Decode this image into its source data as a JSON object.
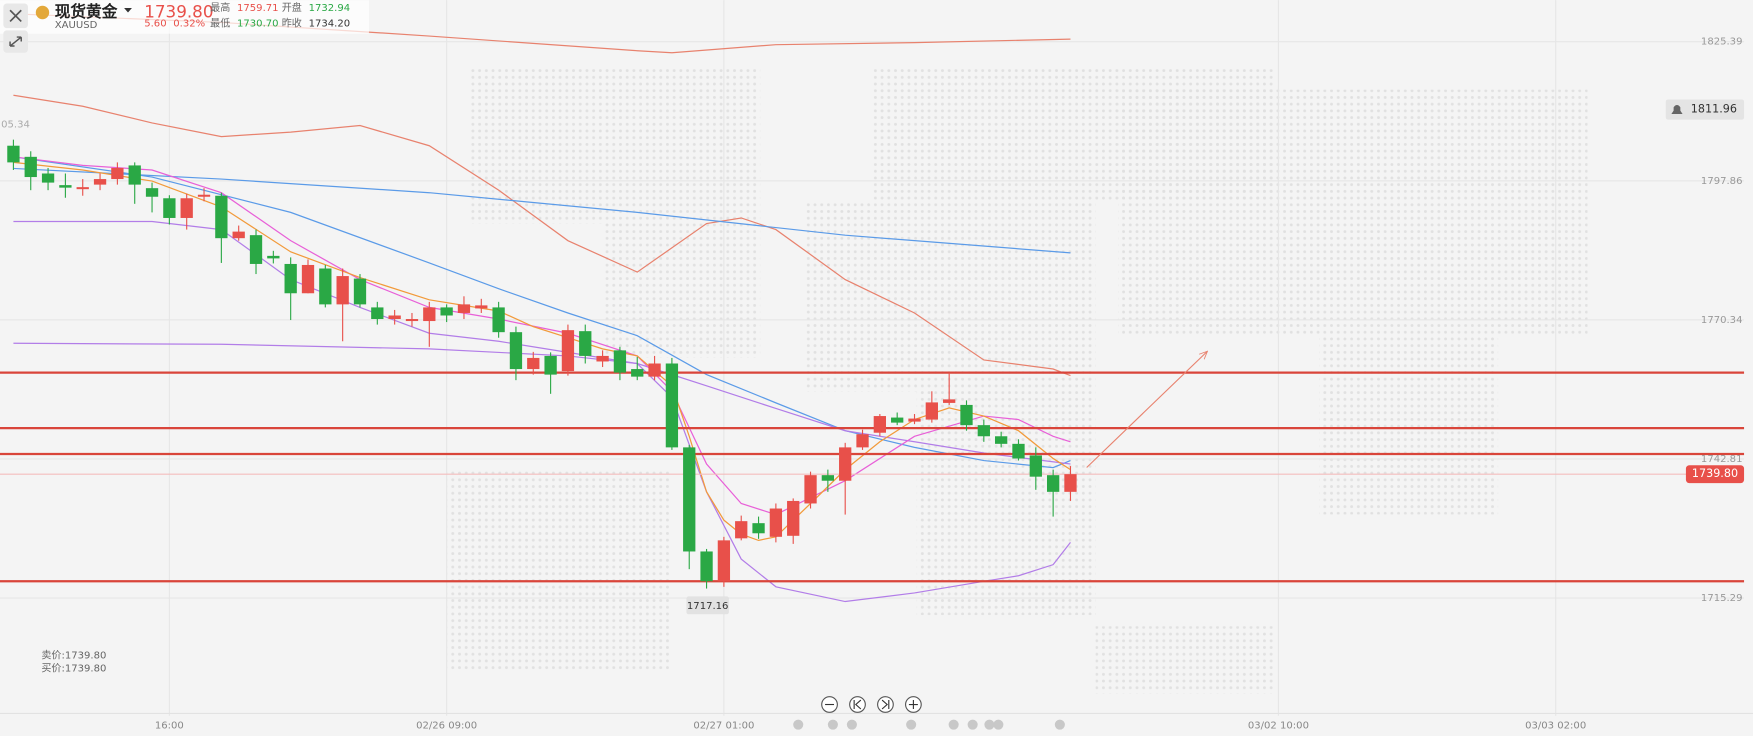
{
  "header": {
    "title": "现货黄金",
    "symbol": "XAUUSD",
    "price": "1739.80",
    "change": "5.60",
    "change_pct": "0.32%",
    "high_label": "最高",
    "high": "1759.71",
    "open_label": "开盘",
    "open": "1732.94",
    "low_label": "最低",
    "low": "1730.70",
    "prev_close_label": "昨收",
    "prev_close": "1734.20"
  },
  "quote": {
    "sell": "卖价:1739.80",
    "buy": "买价:1739.80"
  },
  "chart_data": {
    "type": "candlestick",
    "up_color": "#e8504a",
    "down_color": "#2aa845",
    "open": [
      1804.8,
      1802.6,
      1799.3,
      1797,
      1796.2,
      1797.1,
      1798.2,
      1800.9,
      1796.4,
      1794.4,
      1790.5,
      1794.7,
      1794.9,
      1786.5,
      1787.1,
      1783,
      1781.4,
      1775.6,
      1780.5,
      1773.4,
      1778.5,
      1772.8,
      1770.5,
      1770.1,
      1770.1,
      1772.8,
      1771.7,
      1772.6,
      1772.8,
      1767.9,
      1760.6,
      1763.2,
      1760.2,
      1768.1,
      1762.1,
      1764.3,
      1760.6,
      1759.1,
      1761.7,
      1745.1,
      1724.5,
      1718.6,
      1727.1,
      1730.1,
      1727.4,
      1727.6,
      1734,
      1739.6,
      1738.5,
      1745.1,
      1748,
      1751,
      1750.2,
      1750.6,
      1753.9,
      1753.5,
      1749.5,
      1747.3,
      1745.8,
      1743.5,
      1739.6,
      1736.3
    ],
    "high": [
      1806,
      1803.7,
      1800.4,
      1799.3,
      1798.2,
      1799.3,
      1801.5,
      1801.5,
      1797.5,
      1795,
      1795.3,
      1796.4,
      1795.5,
      1789,
      1788.2,
      1784,
      1782.7,
      1782.3,
      1781.2,
      1780.5,
      1779.4,
      1773.9,
      1772.3,
      1771.7,
      1773.9,
      1773.4,
      1775,
      1774.5,
      1773.9,
      1769,
      1764,
      1763.9,
      1769.4,
      1769.4,
      1764.3,
      1765,
      1763,
      1763.2,
      1762.8,
      1745.6,
      1725,
      1727.4,
      1731.6,
      1731.4,
      1734,
      1735,
      1740.3,
      1740.7,
      1746,
      1748.6,
      1751.7,
      1752,
      1751.7,
      1756.2,
      1759.9,
      1754.4,
      1750.6,
      1748.2,
      1746.7,
      1745.1,
      1740.7,
      1741.4
    ],
    "low": [
      1800,
      1796,
      1796,
      1794.5,
      1794.9,
      1796,
      1797.1,
      1793.3,
      1791.6,
      1789.2,
      1788.2,
      1793.8,
      1781.6,
      1786,
      1779.4,
      1781.5,
      1770.3,
      1775.6,
      1772.8,
      1766.1,
      1772.8,
      1769.4,
      1769.4,
      1769,
      1765,
      1769.9,
      1770.5,
      1771.7,
      1766.8,
      1758.4,
      1759.5,
      1755.7,
      1759.3,
      1761.7,
      1761,
      1758.4,
      1758.4,
      1758.4,
      1744.6,
      1721,
      1717.16,
      1717.5,
      1726.7,
      1727,
      1726.3,
      1726,
      1733,
      1736.3,
      1731.8,
      1744.6,
      1747.3,
      1749.5,
      1749.7,
      1750,
      1753.5,
      1748.4,
      1746.2,
      1745.1,
      1742.5,
      1736.7,
      1731.4,
      1734.5
    ],
    "close": [
      1801.5,
      1798.6,
      1797.5,
      1796.5,
      1796.6,
      1798.2,
      1800.4,
      1797.1,
      1794.7,
      1790.5,
      1794.4,
      1795.1,
      1786.5,
      1787.8,
      1781.4,
      1782.5,
      1775.6,
      1781.2,
      1773.4,
      1779,
      1773.4,
      1770.5,
      1771.2,
      1770.5,
      1772.8,
      1771.2,
      1773.4,
      1773.2,
      1767.9,
      1760.6,
      1762.8,
      1759.5,
      1768.3,
      1763.2,
      1763.2,
      1759.9,
      1759.1,
      1761.7,
      1745.1,
      1724.5,
      1718.6,
      1726.7,
      1730.5,
      1728.1,
      1733,
      1734.5,
      1739.6,
      1738.5,
      1745.1,
      1747.7,
      1751.3,
      1750,
      1750.8,
      1754,
      1754.6,
      1749.5,
      1747.3,
      1745.8,
      1742.9,
      1739.3,
      1736.3,
      1739.8
    ],
    "lines": [
      {
        "color": "#e8826e",
        "x": [
          0,
          12,
          24,
          36,
          38,
          44,
          52,
          61
        ],
        "values": [
          1830.9,
          1829.2,
          1826.5,
          1823.6,
          1823.2,
          1824.8,
          1825.2,
          1825.9
        ]
      },
      {
        "color": "#e8826e",
        "x": [
          0,
          4,
          8,
          12,
          16,
          20,
          24,
          28,
          32,
          36,
          40,
          42,
          44,
          48,
          52,
          56,
          60,
          61
        ],
        "values": [
          1814.8,
          1812.6,
          1809.3,
          1806.6,
          1807.5,
          1808.8,
          1804.8,
          1796,
          1786,
          1779.8,
          1789.4,
          1790.5,
          1788.2,
          1778.3,
          1771.7,
          1762.4,
          1760.6,
          1759.3
        ]
      },
      {
        "color": "#5b9be8",
        "x": [
          0,
          12,
          24,
          36,
          48,
          61
        ],
        "values": [
          1800.3,
          1798.2,
          1795.5,
          1791.6,
          1787.1,
          1783.6
        ]
      },
      {
        "color": "#5b9be8",
        "x": [
          0,
          8,
          16,
          24,
          28,
          32,
          36,
          40,
          44,
          48,
          52,
          56,
          60,
          61
        ],
        "values": [
          1802.6,
          1798.6,
          1791.6,
          1781.6,
          1776.5,
          1771.7,
          1767.2,
          1759.5,
          1753.9,
          1748.4,
          1745.1,
          1742.5,
          1741.1,
          1742.5
        ]
      },
      {
        "color": "#b27de8",
        "x": [
          0,
          12,
          24,
          32,
          36,
          40,
          44,
          48,
          52,
          56,
          61
        ],
        "values": [
          1765.7,
          1765.5,
          1764.6,
          1763.2,
          1761.7,
          1757.3,
          1752.8,
          1748.4,
          1746.2,
          1744,
          1741.8
        ]
      },
      {
        "color": "#b27de8",
        "x": [
          0,
          8,
          12,
          16,
          20,
          24,
          28,
          32,
          36,
          38,
          40,
          42,
          44,
          48,
          52,
          56,
          58,
          60,
          61
        ],
        "values": [
          1789.8,
          1789.8,
          1788.2,
          1778.3,
          1772.8,
          1767.7,
          1766.1,
          1763.9,
          1761.7,
          1755,
          1736.3,
          1723,
          1717.5,
          1714.6,
          1716.3,
          1718.6,
          1719.7,
          1721.9,
          1726.3
        ]
      },
      {
        "color": "#e860d8",
        "x": [
          0,
          4,
          8,
          12,
          16,
          20,
          24,
          28,
          32,
          36,
          38,
          40,
          42,
          44,
          48,
          52,
          56,
          58,
          60,
          61
        ],
        "values": [
          1802.6,
          1800.9,
          1800,
          1795.5,
          1786,
          1778.3,
          1772.8,
          1770.5,
          1767.7,
          1763.2,
          1756.2,
          1741.8,
          1734,
          1731.8,
          1738.5,
          1747.3,
          1751.3,
          1750.6,
          1747.3,
          1746.2
        ]
      },
      {
        "color": "#f29a3a",
        "x": [
          0,
          4,
          8,
          12,
          16,
          20,
          24,
          28,
          30,
          32,
          34,
          36,
          38,
          39,
          40,
          41,
          42,
          43,
          44,
          46,
          48,
          50,
          52,
          54,
          56,
          58,
          60,
          61
        ],
        "values": [
          1801.5,
          1800,
          1797.8,
          1792.7,
          1783.8,
          1778.7,
          1774.3,
          1772.1,
          1769,
          1766.8,
          1764.6,
          1763.2,
          1757.3,
          1747.3,
          1736.3,
          1730.7,
          1727.9,
          1726.7,
          1727.4,
          1734,
          1740.7,
          1746.2,
          1750.6,
          1752.9,
          1751.3,
          1748.4,
          1742.9,
          1740.7
        ]
      }
    ],
    "hlines": [
      1759.9,
      1748.9,
      1743.8,
      1718.6
    ],
    "hline_color": "#d9453a",
    "xlim": [
      -0.774,
      96
    ],
    "xticks": [
      {
        "value": 9,
        "label": "16:00"
      },
      {
        "value": 25,
        "label": "02/26 09:00"
      },
      {
        "value": 41,
        "label": "02/27 01:00"
      },
      {
        "value": 73,
        "label": "03/02 10:00"
      },
      {
        "value": 89,
        "label": "03/03 02:00"
      }
    ],
    "ylim": [
      1692,
      1833.6
    ],
    "yticks": [
      1715.29,
      1742.81,
      1770.34,
      1797.86,
      1825.39
    ],
    "grid": true,
    "last": {
      "value": 1739.8,
      "label": "1739.80"
    },
    "alert": {
      "value": 1811.96,
      "label": "1811.96"
    },
    "low_marker": {
      "index": 40,
      "value": 1717.16,
      "label": "1717.16"
    },
    "edge_label": "05.34"
  }
}
